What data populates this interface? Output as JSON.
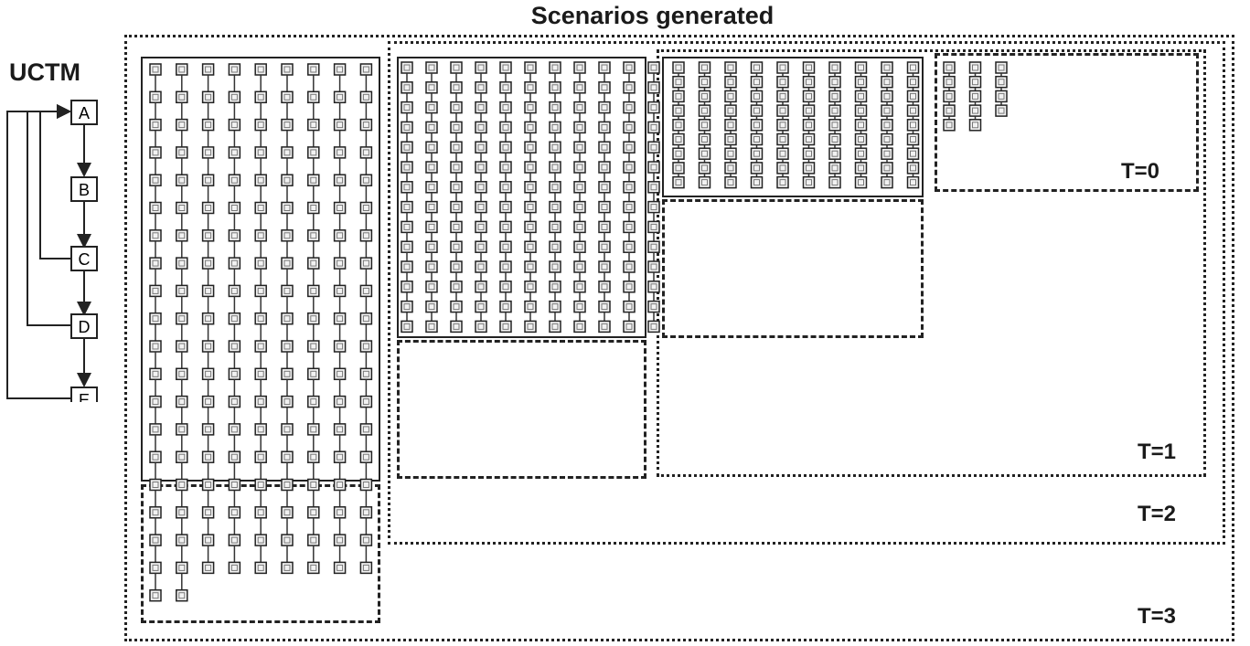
{
  "title": "Scenarios generated",
  "uctm": {
    "title": "UCTM",
    "nodes": [
      "A",
      "B",
      "C",
      "D",
      "E"
    ]
  },
  "time_labels": [
    "T=0",
    "T=1",
    "T=2",
    "T=3"
  ],
  "scenario_sets": [
    {
      "time": "T=0",
      "column_lengths": [
        5,
        5,
        4
      ]
    },
    {
      "time": "T=1",
      "column_lengths": [
        9,
        9,
        9,
        9,
        9,
        9,
        9,
        9,
        9,
        9
      ]
    },
    {
      "time": "T=2",
      "column_lengths": [
        14,
        14,
        14,
        14,
        14,
        14,
        14,
        14,
        14,
        14,
        14
      ]
    },
    {
      "time": "T=3",
      "column_lengths": [
        20,
        20,
        19,
        19,
        19,
        19,
        19,
        19,
        19
      ]
    }
  ]
}
